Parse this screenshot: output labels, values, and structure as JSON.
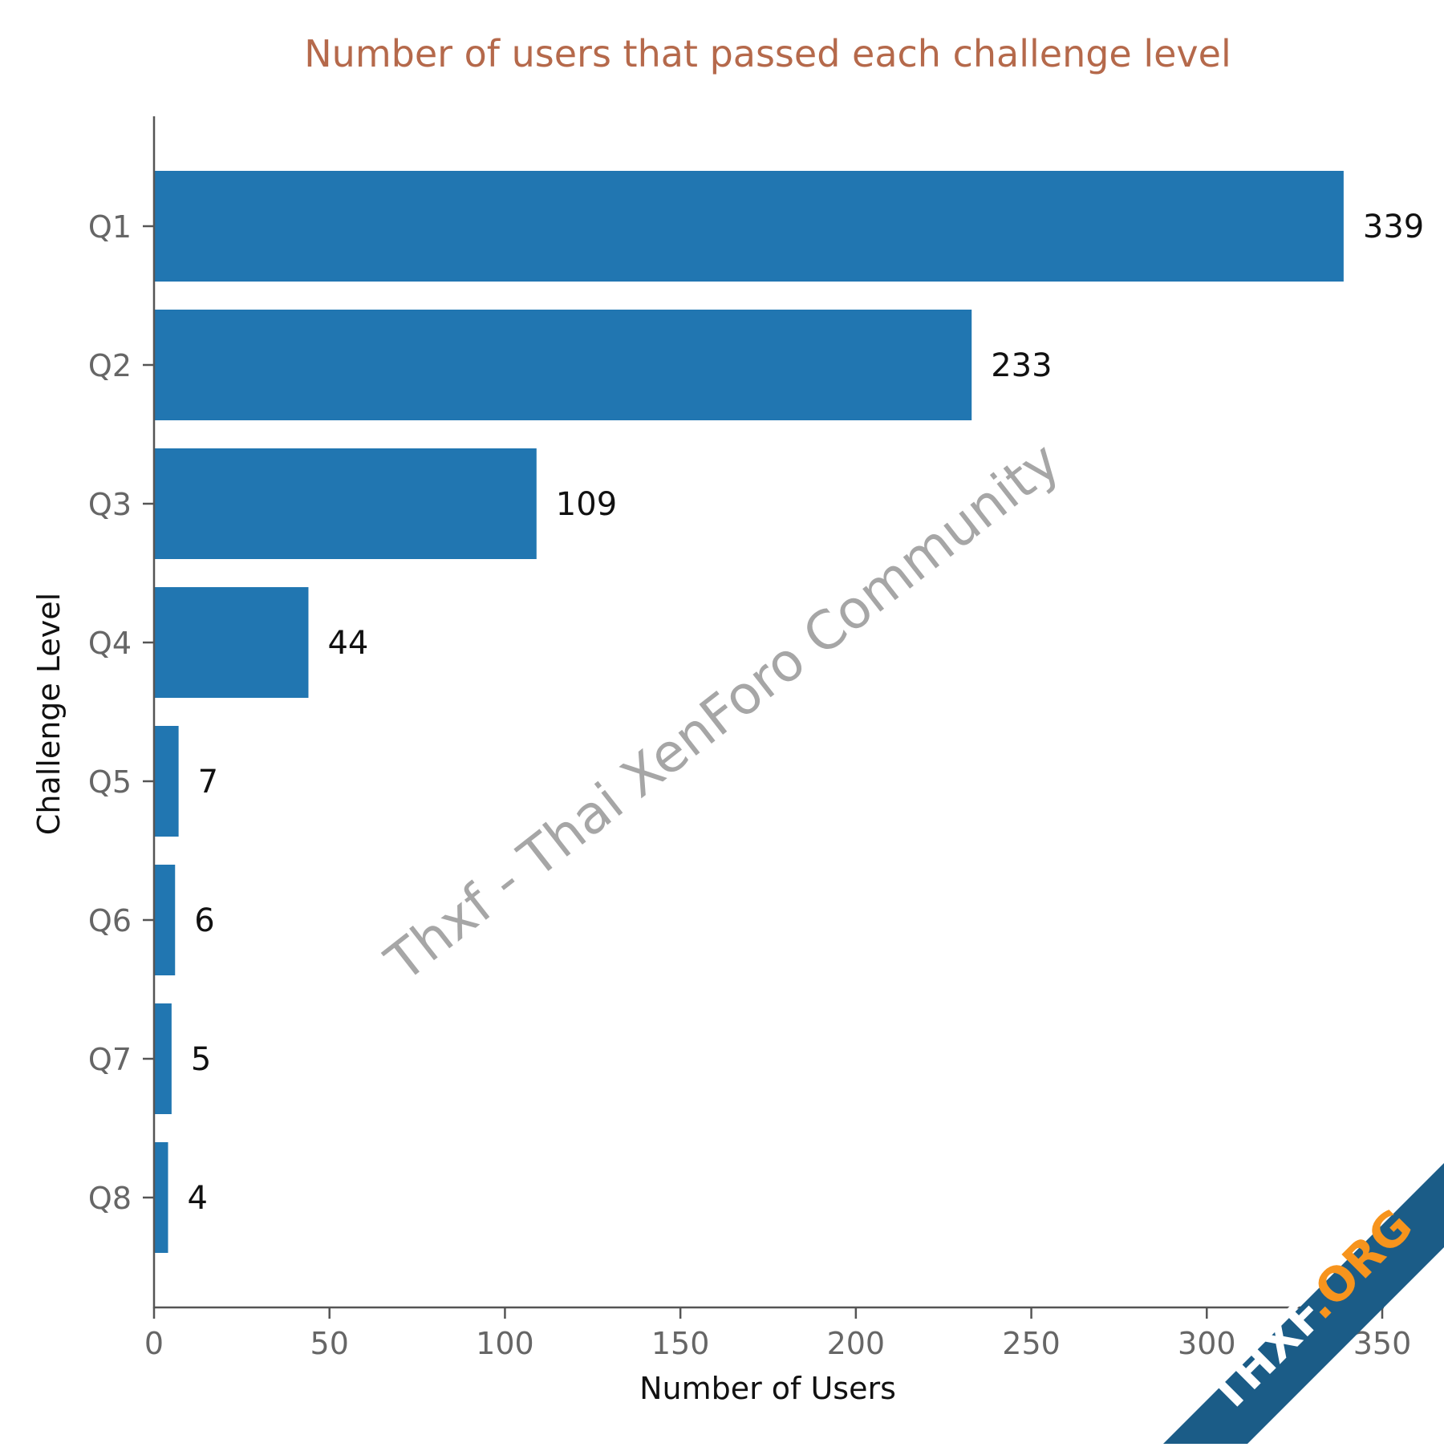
{
  "chart_data": {
    "type": "bar",
    "orientation": "horizontal",
    "title": "Number of users that passed each challenge level",
    "xlabel": "Number of Users",
    "ylabel": "Challenge Level",
    "categories": [
      "Q1",
      "Q2",
      "Q3",
      "Q4",
      "Q5",
      "Q6",
      "Q7",
      "Q8"
    ],
    "values": [
      339,
      233,
      109,
      44,
      7,
      6,
      5,
      4
    ],
    "data_labels": [
      "339",
      "233",
      "109",
      "44",
      "7",
      "6",
      "5",
      "4"
    ],
    "xlim": [
      0,
      350
    ],
    "x_ticks": [
      0,
      50,
      100,
      150,
      200,
      250,
      300,
      350
    ],
    "x_tick_labels": [
      "0",
      "50",
      "100",
      "150",
      "200",
      "250",
      "300",
      "350"
    ],
    "grid": false,
    "legend": "none"
  },
  "colors": {
    "bar": "#2176b1",
    "title": "#b5694b",
    "axis": "#555555",
    "watermark": "#a6a6a6",
    "ribbon": "#1b5c87",
    "ribbon_accent": "#f7941d"
  },
  "watermark": {
    "text": "Thxf - Thai XenForo Community"
  },
  "corner_badge": {
    "brand": "THXF",
    "suffix": ".ORG"
  }
}
